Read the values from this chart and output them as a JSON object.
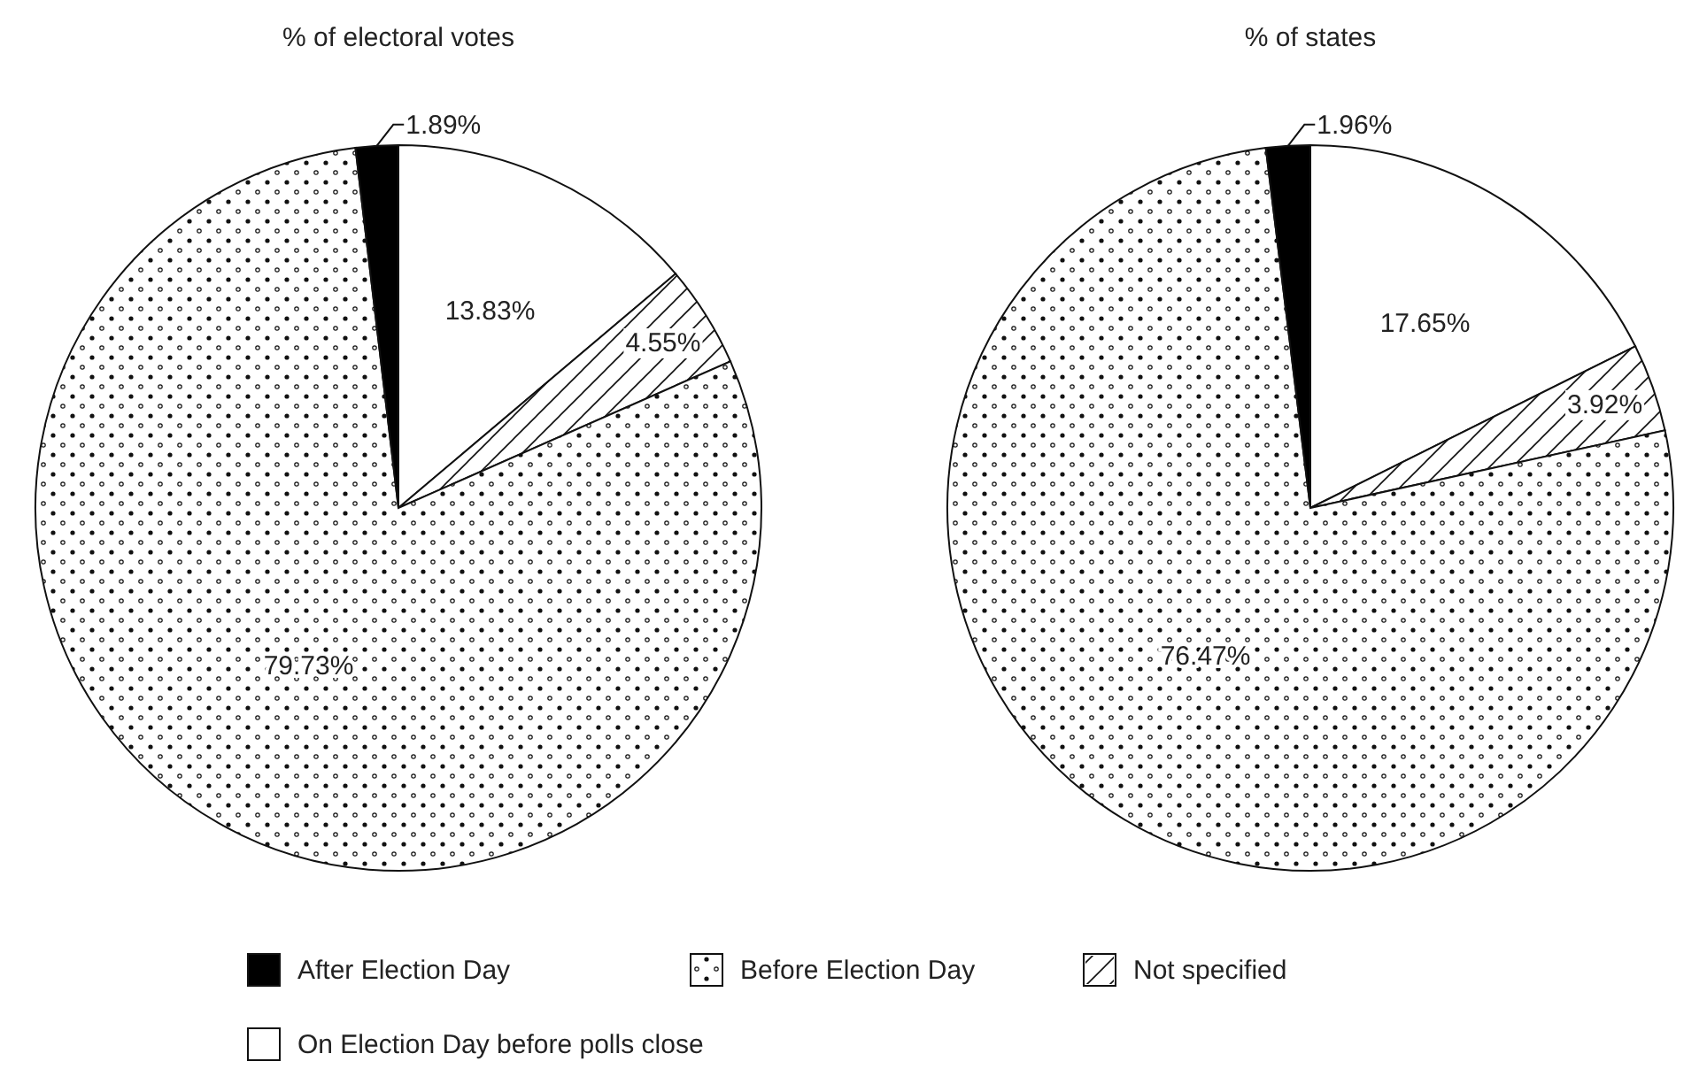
{
  "chart_data": [
    {
      "type": "pie",
      "title": "% of electoral votes",
      "categories": [
        "On Election Day before polls close",
        "Not specified",
        "Before Election Day",
        "After Election Day"
      ],
      "values": [
        13.83,
        4.55,
        79.73,
        1.89
      ],
      "value_labels": [
        "13.83%",
        "4.55%",
        "79.73%",
        "1.89%"
      ],
      "colors": [
        "#ffffff",
        "#ffffff",
        "#ffffff",
        "#000000"
      ],
      "legend": "bottom"
    },
    {
      "type": "pie",
      "title": "% of states",
      "categories": [
        null,
        null,
        null,
        null
      ],
      "values": [
        17.65,
        3.92,
        76.47,
        1.96
      ],
      "value_labels": [
        "17.65%",
        "3.92%",
        "76.47%",
        "1.96%"
      ],
      "colors": [
        "#ffffff",
        "#ffffff",
        "#ffffff",
        "#000000"
      ]
    }
  ]
}
